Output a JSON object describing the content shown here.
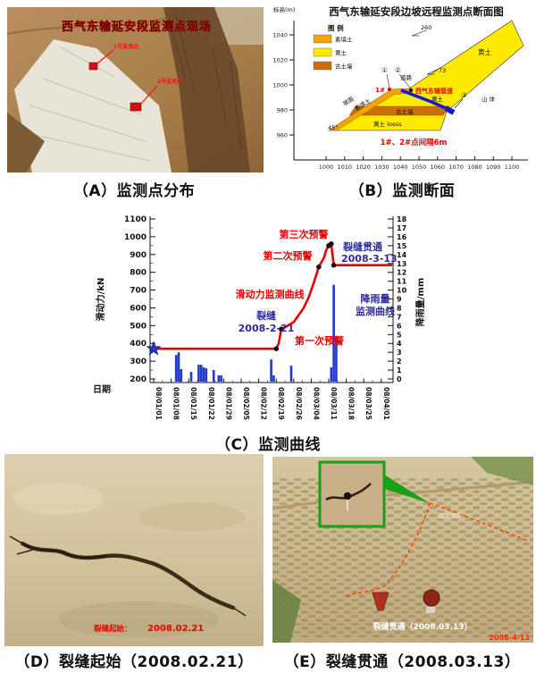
{
  "panels": {
    "a": {
      "photo_title": "西气东输延安段监测点现场",
      "point1_label": "1号监测点",
      "point2_label": "2号监测点",
      "caption": "（A）监测点分布"
    },
    "b": {
      "title": "西气东输延安段边坡远程监测点断面图",
      "elev_axis_label": "标高(m)",
      "legend_title": "图 例",
      "legend": [
        {
          "label": "素填土",
          "color": "#f5a300"
        },
        {
          "label": "黄土",
          "color": "#ffea00"
        },
        {
          "label": "古土壤",
          "color": "#cc6f00"
        }
      ],
      "y_ticks": [
        "1040",
        "1020",
        "1000",
        "980",
        "960"
      ],
      "x_ticks": [
        "1000",
        "1010",
        "1020",
        "1030",
        "1040",
        "1050",
        "1060",
        "1070",
        "1080",
        "1090",
        "1100"
      ],
      "labels": {
        "slope_260": "260",
        "angle_73": "73",
        "road": "道路",
        "num1": "①",
        "num2": "②",
        "num3": "③",
        "pt1": "1#",
        "pipeline": "西气东输管道",
        "loess_upper": "黄土",
        "mountain": "山 体",
        "loess_mid": "黄土",
        "paleosol": "古土壤",
        "loess_lower": "黄土 loess",
        "fill_soil": "素填土",
        "slope_face": "坡面",
        "angle_45": "45°",
        "note": "1#、2#点间隔6m"
      },
      "caption": "（B）监测断面"
    },
    "c": {
      "caption": "（C）监测曲线"
    },
    "d": {
      "overlay_label": "裂缝起始：",
      "overlay_date": "2008.02.21",
      "caption": "（D）裂缝起始（2008.02.21）"
    },
    "e": {
      "overlay": "裂缝贯通（2008.03.13）",
      "slope_top_label": "边坡顶部",
      "timestamp": "2008-4-13",
      "caption": "（E）裂缝贯通（2008.03.13）"
    }
  },
  "chart_data": {
    "type": "line+bar",
    "xlabel": "日期",
    "ylabel_left": "滑动力/kN",
    "ylabel_right": "降雨量/mm",
    "ylim_left": [
      200,
      1100
    ],
    "ylim_right": [
      0,
      18
    ],
    "x_ticks": [
      "08/01/01",
      "08/01/08",
      "08/01/15",
      "08/01/22",
      "08/01/29",
      "08/02/05",
      "08/02/12",
      "08/02/19",
      "08/02/26",
      "08/03/04",
      "08/03/11",
      "08/03/18",
      "08/03/25",
      "08/04/01"
    ],
    "left_ticks": [
      1100,
      1000,
      900,
      800,
      700,
      600,
      500,
      400,
      300,
      200
    ],
    "right_ticks": [
      18,
      17,
      16,
      15,
      14,
      13,
      12,
      11,
      10,
      9,
      8,
      7,
      6,
      5,
      4,
      3,
      2,
      1,
      0
    ],
    "series": [
      {
        "name": "滑动力监测曲线",
        "type": "line",
        "color": "#e80000",
        "points": [
          [
            "08/01/01",
            370
          ],
          [
            "08/02/19",
            370
          ],
          [
            "08/02/20",
            400
          ],
          [
            "08/02/21",
            480
          ],
          [
            "08/02/23",
            495
          ],
          [
            "08/02/26",
            520
          ],
          [
            "08/02/28",
            560
          ],
          [
            "08/03/01",
            600
          ],
          [
            "08/03/03",
            660
          ],
          [
            "08/03/05",
            740
          ],
          [
            "08/03/07",
            830
          ],
          [
            "08/03/09",
            880
          ],
          [
            "08/03/10",
            925
          ],
          [
            "08/03/11",
            950
          ],
          [
            "08/03/12",
            960
          ],
          [
            "08/03/13",
            840
          ],
          [
            "08/04/05",
            840
          ]
        ]
      },
      {
        "name": "降雨量监测曲线",
        "type": "bar",
        "color": "#2238c8",
        "points": [
          [
            "08/01/10",
            2.7
          ],
          [
            "08/01/11",
            3.0
          ],
          [
            "08/01/12",
            1.1
          ],
          [
            "08/01/16",
            0.8
          ],
          [
            "08/01/19",
            1.6
          ],
          [
            "08/01/20",
            1.6
          ],
          [
            "08/01/21",
            1.3
          ],
          [
            "08/01/22",
            1.2
          ],
          [
            "08/01/25",
            1.0
          ],
          [
            "08/01/27",
            0.4
          ],
          [
            "08/01/28",
            0.4
          ],
          [
            "08/02/17",
            2.2
          ],
          [
            "08/02/18",
            0.4
          ],
          [
            "08/02/25",
            1.5
          ],
          [
            "08/03/12",
            1.3
          ],
          [
            "08/03/13",
            10.6
          ],
          [
            "08/03/14",
            4.6
          ]
        ]
      }
    ],
    "event_dots": [
      [
        "08/02/19",
        370
      ],
      [
        "08/02/21",
        480
      ],
      [
        "08/03/07",
        830
      ],
      [
        "08/03/11",
        950
      ],
      [
        "08/03/12",
        960
      ],
      [
        "08/03/13",
        840
      ]
    ],
    "star_point": [
      "08/01/01",
      370
    ],
    "annotations": {
      "warn1": "第一次预警",
      "warn2": "第二次预警",
      "warn3": "第三次预警",
      "force_curve": "滑动力监测曲线",
      "crack_l1": "裂缝",
      "crack_l2": "2008-2-21",
      "through_l1": "裂缝贯通",
      "through_l2": "2008-3-13",
      "rain_l1": "降雨量",
      "rain_l2": "监测曲线"
    }
  }
}
